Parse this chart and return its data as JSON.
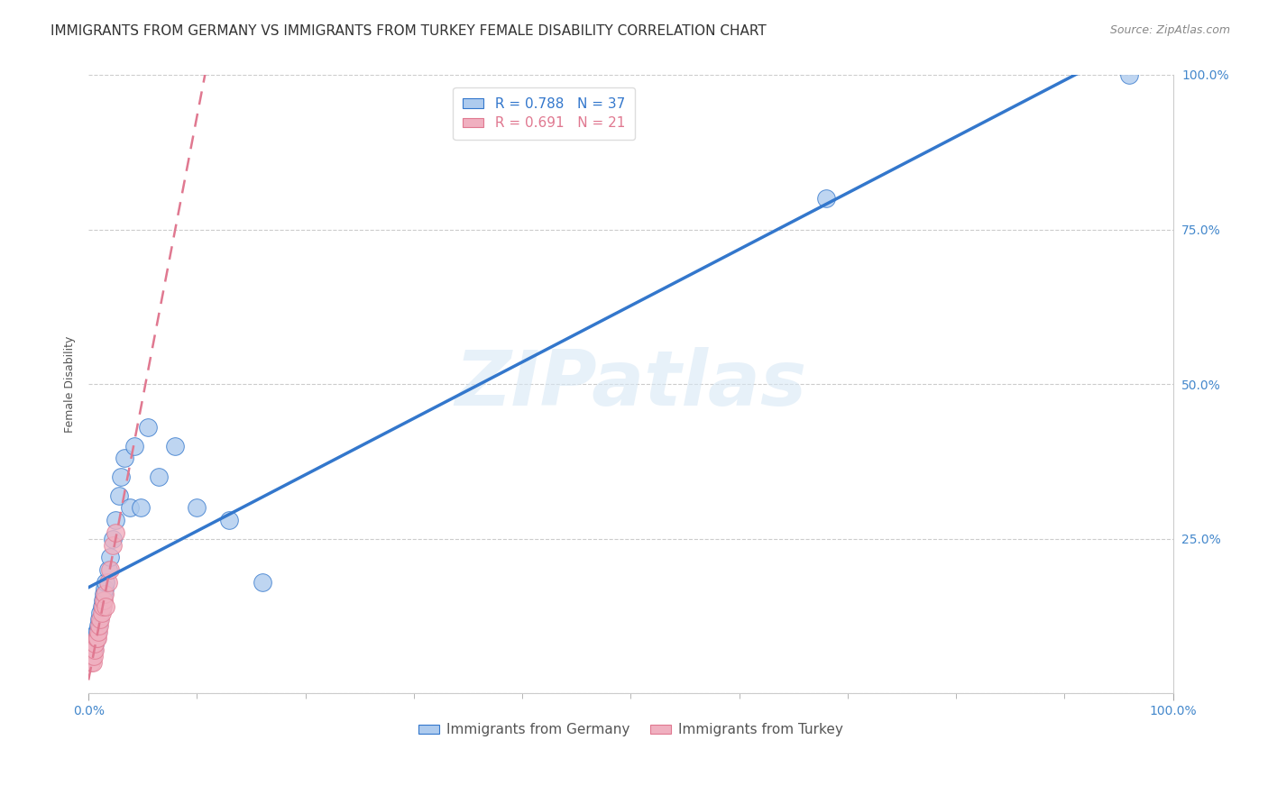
{
  "title": "IMMIGRANTS FROM GERMANY VS IMMIGRANTS FROM TURKEY FEMALE DISABILITY CORRELATION CHART",
  "source": "Source: ZipAtlas.com",
  "ylabel": "Female Disability",
  "xlim": [
    0,
    1
  ],
  "ylim": [
    0,
    1
  ],
  "germany_R": 0.788,
  "germany_N": 37,
  "turkey_R": 0.691,
  "turkey_N": 21,
  "germany_color": "#aecbee",
  "turkey_color": "#f0b0c0",
  "germany_line_color": "#3377cc",
  "turkey_line_color": "#e07890",
  "germany_x": [
    0.002,
    0.003,
    0.004,
    0.004,
    0.005,
    0.005,
    0.006,
    0.006,
    0.007,
    0.007,
    0.008,
    0.009,
    0.01,
    0.011,
    0.012,
    0.013,
    0.014,
    0.015,
    0.016,
    0.018,
    0.02,
    0.022,
    0.025,
    0.028,
    0.03,
    0.033,
    0.038,
    0.042,
    0.048,
    0.055,
    0.065,
    0.08,
    0.1,
    0.13,
    0.16,
    0.68,
    0.96
  ],
  "germany_y": [
    0.06,
    0.07,
    0.07,
    0.08,
    0.07,
    0.08,
    0.09,
    0.08,
    0.09,
    0.1,
    0.1,
    0.11,
    0.12,
    0.13,
    0.14,
    0.15,
    0.16,
    0.17,
    0.18,
    0.2,
    0.22,
    0.25,
    0.28,
    0.32,
    0.35,
    0.38,
    0.3,
    0.4,
    0.3,
    0.43,
    0.35,
    0.4,
    0.3,
    0.28,
    0.18,
    0.8,
    1.0
  ],
  "turkey_x": [
    0.002,
    0.003,
    0.004,
    0.004,
    0.005,
    0.006,
    0.006,
    0.007,
    0.008,
    0.009,
    0.01,
    0.011,
    0.012,
    0.013,
    0.014,
    0.015,
    0.016,
    0.018,
    0.02,
    0.022,
    0.025
  ],
  "turkey_y": [
    0.05,
    0.06,
    0.05,
    0.07,
    0.06,
    0.07,
    0.08,
    0.09,
    0.09,
    0.1,
    0.11,
    0.12,
    0.13,
    0.14,
    0.15,
    0.16,
    0.14,
    0.18,
    0.2,
    0.24,
    0.26
  ],
  "watermark": "ZIPatlas",
  "background_color": "#ffffff",
  "grid_color": "#cccccc",
  "title_fontsize": 11,
  "axis_label_fontsize": 9,
  "tick_fontsize": 10,
  "legend_fontsize": 11,
  "source_fontsize": 9
}
